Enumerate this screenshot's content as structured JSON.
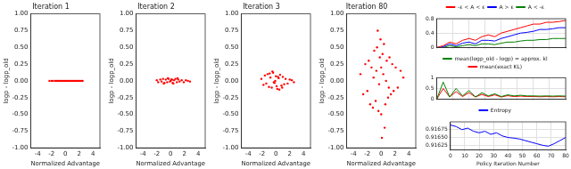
{
  "chart_data": [
    {
      "type": "scatter",
      "title": "Iteration 1",
      "x_label": "Normalized Advantage",
      "y_label": "logp - logp_old",
      "color": "red",
      "marker": "circle",
      "grid": false,
      "xlim": [
        -5,
        5
      ],
      "xticks": [
        -4,
        -2,
        0,
        2,
        4
      ],
      "ylim": [
        -1,
        1
      ],
      "yticks": [
        {
          "value": -1,
          "label": "-1.00"
        },
        {
          "value": -0.75,
          "label": "-0.75"
        },
        {
          "value": -0.5,
          "label": "-0.50"
        },
        {
          "value": -0.25,
          "label": "-0.25"
        },
        {
          "value": 0,
          "label": "0.00"
        },
        {
          "value": 0.25,
          "label": "0.25"
        },
        {
          "value": 0.5,
          "label": "0.50"
        },
        {
          "value": 0.75,
          "label": "0.75"
        },
        {
          "value": 1,
          "label": "1.00"
        }
      ],
      "x": [
        -2.3,
        -2.0,
        -1.8,
        -1.5,
        -1.3,
        -1.1,
        -0.9,
        -0.7,
        -0.5,
        -0.3,
        -0.1,
        0.1,
        0.3,
        0.5,
        0.7,
        0.9,
        1.1,
        1.3,
        1.5,
        1.7,
        1.9,
        2.1,
        2.3,
        2.5
      ],
      "values": [
        0,
        0,
        0,
        0,
        0,
        0,
        0,
        0,
        0,
        0,
        0,
        0,
        0,
        0,
        0,
        0,
        0,
        0,
        0,
        0,
        0,
        0,
        0,
        0
      ]
    },
    {
      "type": "scatter",
      "title": "Iteration 2",
      "x_label": "Normalized Advantage",
      "y_label": "logp - logp_old",
      "color": "red",
      "marker": "circle",
      "grid": false,
      "xlim": [
        -5,
        5
      ],
      "xticks": [
        -4,
        -2,
        0,
        2,
        4
      ],
      "ylim": [
        -1,
        1
      ],
      "yticks": [
        {
          "value": -1,
          "label": "-1.00"
        },
        {
          "value": -0.75,
          "label": "-0.75"
        },
        {
          "value": -0.5,
          "label": "-0.50"
        },
        {
          "value": -0.25,
          "label": "-0.25"
        },
        {
          "value": 0,
          "label": "0.00"
        },
        {
          "value": 0.25,
          "label": "0.25"
        },
        {
          "value": 0.5,
          "label": "0.50"
        },
        {
          "value": 0.75,
          "label": "0.75"
        },
        {
          "value": 1,
          "label": "1.00"
        }
      ],
      "x": [
        -2.0,
        -1.8,
        -1.5,
        -1.3,
        -1.1,
        -0.9,
        -0.7,
        -0.5,
        -0.3,
        -0.1,
        0.1,
        0.3,
        0.5,
        0.7,
        0.9,
        1.1,
        1.3,
        1.6,
        1.9,
        2.2,
        2.5,
        2.8,
        -0.4,
        0.4,
        0.0,
        -1.0,
        1.0,
        0.2
      ],
      "values": [
        0.01,
        -0.02,
        0.02,
        -0.01,
        0.03,
        -0.03,
        0.02,
        -0.02,
        0.03,
        -0.01,
        0.02,
        -0.03,
        0.01,
        0.03,
        -0.02,
        0.02,
        -0.01,
        0.01,
        -0.02,
        0.01,
        0.0,
        -0.01,
        0.04,
        -0.04,
        0.0,
        -0.04,
        0.04,
        0.02
      ]
    },
    {
      "type": "scatter",
      "title": "Iteration 3",
      "x_label": "Normalized Advantage",
      "y_label": "logp - logp_old",
      "color": "red",
      "marker": "circle",
      "grid": false,
      "xlim": [
        -5,
        5
      ],
      "xticks": [
        -4,
        -2,
        0,
        2,
        4
      ],
      "ylim": [
        -1,
        1
      ],
      "yticks": [
        {
          "value": -1,
          "label": "-1.00"
        },
        {
          "value": -0.75,
          "label": "-0.75"
        },
        {
          "value": -0.5,
          "label": "-0.50"
        },
        {
          "value": -0.25,
          "label": "-0.25"
        },
        {
          "value": 0,
          "label": "0.00"
        },
        {
          "value": 0.25,
          "label": "0.25"
        },
        {
          "value": 0.5,
          "label": "0.50"
        },
        {
          "value": 0.75,
          "label": "0.75"
        },
        {
          "value": 1,
          "label": "1.00"
        }
      ],
      "x": [
        -2.1,
        -1.8,
        -1.6,
        -1.4,
        -1.2,
        -1.0,
        -0.8,
        -0.6,
        -0.4,
        -0.2,
        0.0,
        0.2,
        0.4,
        0.6,
        0.8,
        1.0,
        1.2,
        1.4,
        1.7,
        2.0,
        2.3,
        2.6,
        -0.5,
        0.5,
        -0.1,
        0.1,
        -0.9,
        0.9,
        0.3,
        -0.3
      ],
      "values": [
        0.03,
        -0.06,
        0.08,
        -0.04,
        0.1,
        -0.09,
        0.05,
        -0.1,
        0.12,
        -0.03,
        0.07,
        -0.12,
        0.04,
        0.09,
        -0.07,
        0.06,
        -0.05,
        0.03,
        -0.04,
        0.02,
        0.01,
        -0.02,
        0.14,
        -0.13,
        0.0,
        -0.08,
        0.11,
        -0.1,
        0.06,
        -0.02
      ]
    },
    {
      "type": "scatter",
      "title": "Iteration 80",
      "x_label": "Normalized Advantage",
      "y_label": "logp - logp_old",
      "color": "red",
      "marker": "circle",
      "grid": false,
      "xlim": [
        -5,
        5
      ],
      "xticks": [
        -4,
        -2,
        0,
        2,
        4
      ],
      "ylim": [
        -1,
        1
      ],
      "yticks": [
        {
          "value": -1,
          "label": "-1.00"
        },
        {
          "value": -0.75,
          "label": "-0.75"
        },
        {
          "value": -0.5,
          "label": "-0.50"
        },
        {
          "value": -0.25,
          "label": "-0.25"
        },
        {
          "value": 0,
          "label": "0.00"
        },
        {
          "value": 0.25,
          "label": "0.25"
        },
        {
          "value": 0.5,
          "label": "0.50"
        },
        {
          "value": 0.75,
          "label": "0.75"
        },
        {
          "value": 1,
          "label": "1.00"
        }
      ],
      "x": [
        -3.0,
        -2.6,
        -2.3,
        -2.0,
        -1.8,
        -1.6,
        -1.4,
        -1.2,
        -1.0,
        -0.8,
        -0.6,
        -0.4,
        -0.2,
        0.0,
        0.2,
        0.4,
        0.6,
        0.8,
        1.0,
        1.2,
        1.4,
        1.6,
        1.8,
        2.1,
        2.4,
        2.8,
        3.2,
        -0.5,
        0.5,
        0.1,
        -0.1,
        0.3,
        -0.3,
        0.7,
        -0.7,
        1.1,
        -1.1,
        0.0
      ],
      "values": [
        0.1,
        -0.2,
        0.25,
        -0.15,
        0.3,
        -0.35,
        0.2,
        -0.4,
        0.45,
        -0.3,
        0.5,
        -0.45,
        0.35,
        -0.5,
        0.4,
        0.55,
        -0.35,
        0.3,
        -0.25,
        0.35,
        -0.2,
        0.25,
        -0.15,
        0.2,
        -0.1,
        0.15,
        0.05,
        0.75,
        -0.7,
        -0.85,
        0.62,
        0.1,
        -0.05,
        0.0,
        0.15,
        -0.1,
        0.05,
        0.2
      ]
    },
    {
      "type": "line",
      "grid": true,
      "legend": "top",
      "tick_labels": "y",
      "xlim": [
        0,
        80
      ],
      "xticks": [
        0,
        10,
        20,
        30,
        40,
        50,
        60,
        70,
        80
      ],
      "ylim": [
        0,
        0.8
      ],
      "yticks": [
        0,
        0.4,
        0.8
      ],
      "x": [
        0,
        4,
        8,
        12,
        16,
        20,
        24,
        28,
        32,
        36,
        40,
        44,
        48,
        52,
        56,
        60,
        64,
        68,
        72,
        76,
        80
      ],
      "series": [
        {
          "name": "-ε < A < ε",
          "color": "red",
          "values": [
            0,
            0.05,
            0.15,
            0.1,
            0.2,
            0.25,
            0.2,
            0.3,
            0.35,
            0.3,
            0.4,
            0.45,
            0.5,
            0.55,
            0.6,
            0.65,
            0.65,
            0.7,
            0.7,
            0.72,
            0.75
          ]
        },
        {
          "name": "A > ε",
          "color": "blue",
          "values": [
            0,
            0.02,
            0.1,
            0.05,
            0.12,
            0.15,
            0.1,
            0.2,
            0.2,
            0.18,
            0.25,
            0.3,
            0.35,
            0.4,
            0.42,
            0.45,
            0.5,
            0.5,
            0.52,
            0.55,
            0.55
          ]
        },
        {
          "name": "A < -ε",
          "color": "green",
          "values": [
            0,
            0,
            0.05,
            0.02,
            0.05,
            0.08,
            0.05,
            0.1,
            0.1,
            0.08,
            0.12,
            0.15,
            0.15,
            0.18,
            0.2,
            0.2,
            0.22,
            0.22,
            0.25,
            0.25,
            0.25
          ]
        }
      ]
    },
    {
      "type": "line",
      "grid": true,
      "legend": "top",
      "tick_labels": "y",
      "xlim": [
        0,
        80
      ],
      "xticks": [
        0,
        10,
        20,
        30,
        40,
        50,
        60,
        70,
        80
      ],
      "ylim": [
        0,
        1
      ],
      "yticks": [
        0,
        0.5,
        1
      ],
      "x": [
        0,
        4,
        8,
        12,
        16,
        20,
        24,
        28,
        32,
        36,
        40,
        44,
        48,
        52,
        56,
        60,
        64,
        68,
        72,
        76,
        80
      ],
      "series": [
        {
          "name": "mean(logp_old - logp) = approx. kl",
          "color": "green",
          "values": [
            0,
            0.8,
            0.1,
            0.5,
            0.15,
            0.4,
            0.1,
            0.3,
            0.15,
            0.25,
            0.12,
            0.2,
            0.15,
            0.18,
            0.15,
            0.15,
            0.14,
            0.15,
            0.14,
            0.15,
            0.14
          ]
        },
        {
          "name": "mean(exact KL)",
          "color": "red",
          "values": [
            0,
            0.5,
            0.1,
            0.35,
            0.12,
            0.3,
            0.1,
            0.22,
            0.12,
            0.2,
            0.1,
            0.16,
            0.12,
            0.14,
            0.12,
            0.12,
            0.11,
            0.12,
            0.11,
            0.12,
            0.11
          ]
        }
      ]
    },
    {
      "type": "line",
      "grid": true,
      "legend": "top",
      "tick_labels": true,
      "x_label": "Policy Iteration Number",
      "xlim": [
        0,
        80
      ],
      "xticks": [
        0,
        10,
        20,
        30,
        40,
        50,
        60,
        70,
        80
      ],
      "ylim": [
        0.9161,
        0.917
      ],
      "yticks": [
        {
          "value": 0.91625,
          "label": "0.91625"
        },
        {
          "value": 0.9165,
          "label": "0.91650"
        },
        {
          "value": 0.91675,
          "label": "0.91675"
        }
      ],
      "x": [
        0,
        4,
        8,
        12,
        16,
        20,
        24,
        28,
        32,
        36,
        40,
        44,
        48,
        52,
        56,
        60,
        64,
        68,
        72,
        76,
        80
      ],
      "series": [
        {
          "name": "Entropy",
          "color": "blue",
          "values": [
            0.9169,
            0.91685,
            0.91675,
            0.9168,
            0.9167,
            0.91665,
            0.9167,
            0.9166,
            0.91665,
            0.91655,
            0.9165,
            0.91648,
            0.91645,
            0.9164,
            0.91635,
            0.9163,
            0.91625,
            0.91622,
            0.9163,
            0.9164,
            0.9165
          ]
        }
      ]
    }
  ]
}
